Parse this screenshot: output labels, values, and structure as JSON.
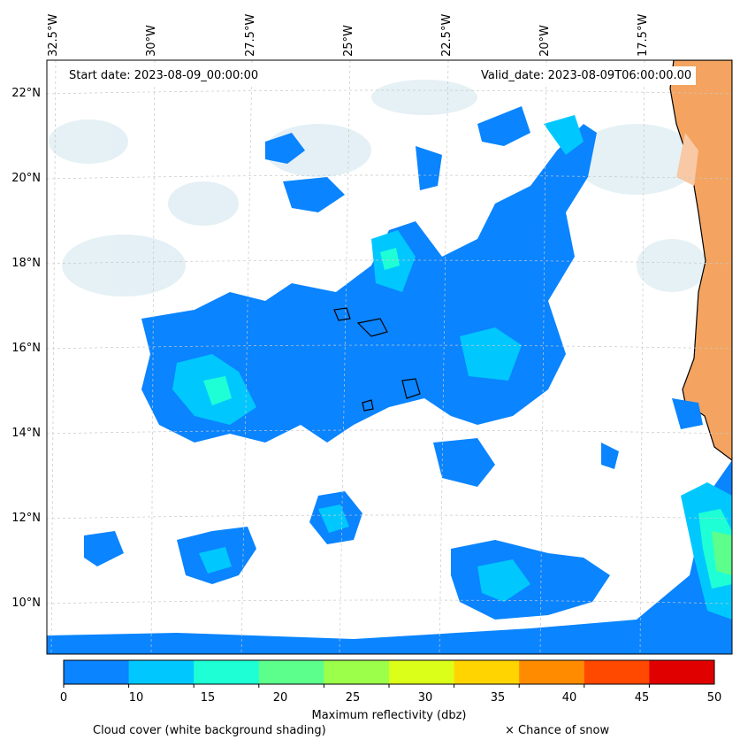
{
  "map": {
    "start_date_label": "Start date: 2023-08-09_00:00:00",
    "valid_date_label": "Valid_date: 2023-08-09T06:00:00.00",
    "longitude_labels": [
      "32.5°W",
      "30°W",
      "27.5°W",
      "25°W",
      "22.5°W",
      "20°W",
      "17.5°W"
    ],
    "latitude_labels": [
      "22°N",
      "20°N",
      "18°N",
      "16°N",
      "14°N",
      "12°N",
      "10°N"
    ],
    "land_color": "#f4a460",
    "grid_color": "#c8c8c8"
  },
  "colorbar": {
    "title": "Maximum reflectivity (dbz)",
    "ticks": [
      "0",
      "5",
      "10",
      "15",
      "20",
      "25",
      "30",
      "35",
      "40",
      "45",
      "50"
    ],
    "colors": [
      "#0a84ff",
      "#00c8ff",
      "#1fffd6",
      "#5cff8c",
      "#9cff4a",
      "#dcff1a",
      "#ffd400",
      "#ff8c00",
      "#ff4800",
      "#e00000"
    ],
    "range": [
      0,
      50
    ]
  },
  "legend": {
    "cloud_cover_text": "Cloud cover (white background shading)",
    "snow_text": "× Chance of snow"
  }
}
